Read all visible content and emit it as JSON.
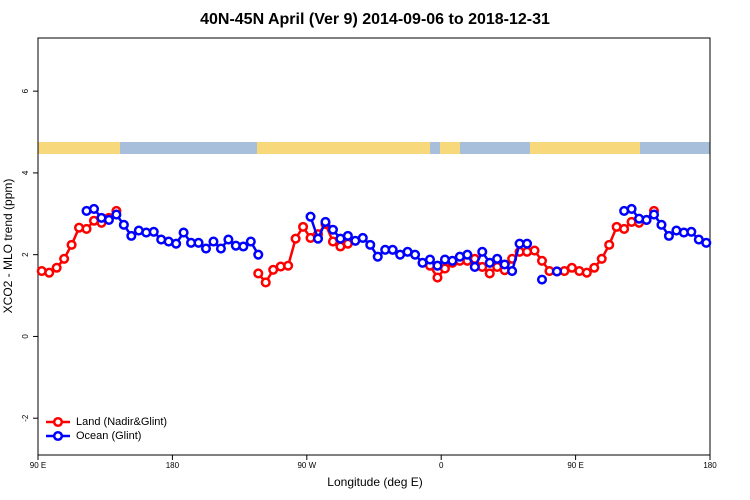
{
  "chart_data": {
    "type": "line",
    "title": "40N-45N April (Ver 9)   2014-09-06 to 2018-12-31",
    "xlabel": "Longitude (deg E)",
    "ylabel": "XCO2 - MLO trend (ppm)",
    "x": [
      92.5,
      97.5,
      102.5,
      107.5,
      112.5,
      117.5,
      122.5,
      127.5,
      132.5,
      137.5,
      142.5,
      147.5,
      152.5,
      157.5,
      162.5,
      167.5,
      172.5,
      177.5,
      182.5,
      187.5,
      192.5,
      197.5,
      202.5,
      207.5,
      212.5,
      217.5,
      222.5,
      227.5,
      232.5,
      237.5,
      242.5,
      247.5,
      252.5,
      257.5,
      262.5,
      267.5,
      272.5,
      277.5,
      282.5,
      287.5,
      292.5,
      297.5,
      302.5,
      307.5,
      312.5,
      317.5,
      322.5,
      327.5,
      332.5,
      337.5,
      342.5,
      347.5,
      352.5,
      357.5,
      362.5,
      367.5,
      372.5,
      377.5,
      382.5,
      387.5,
      392.5,
      397.5,
      402.5,
      407.5,
      412.5,
      417.5,
      422.5,
      427.5,
      432.5,
      437.5,
      442.5,
      447.5,
      452.5,
      457.5,
      462.5,
      467.5,
      472.5,
      477.5,
      482.5,
      487.5,
      492.5,
      497.5,
      502.5,
      507.5,
      512.5,
      517.5,
      522.5,
      527.5,
      532.5,
      537.5
    ],
    "series": [
      {
        "name": "Land (Nadir&Glint)",
        "color": "#ff0000",
        "values": [
          1.6,
          1.56,
          1.68,
          1.9,
          2.24,
          2.66,
          2.63,
          2.83,
          2.78,
          2.9,
          3.07,
          null,
          null,
          null,
          null,
          null,
          null,
          null,
          null,
          null,
          null,
          null,
          null,
          null,
          null,
          null,
          null,
          null,
          null,
          1.54,
          1.32,
          1.63,
          1.71,
          1.73,
          2.39,
          2.68,
          2.41,
          2.5,
          2.75,
          2.32,
          2.2,
          2.27,
          null,
          null,
          null,
          null,
          null,
          null,
          null,
          null,
          null,
          null,
          1.73,
          1.44,
          1.66,
          1.8,
          1.85,
          1.85,
          1.9,
          1.7,
          1.54,
          1.7,
          1.62,
          1.9,
          2.07,
          2.07,
          2.1,
          1.85,
          1.6,
          1.59,
          1.6,
          1.68,
          1.6,
          1.56,
          1.68,
          1.9,
          2.24,
          2.68,
          2.63,
          2.8,
          2.78,
          2.85,
          3.07,
          null,
          null,
          null,
          null,
          null,
          null,
          null
        ]
      },
      {
        "name": "Ocean (Glint)",
        "color": "#0000ff",
        "values": [
          null,
          null,
          null,
          null,
          null,
          null,
          3.07,
          3.12,
          2.9,
          2.85,
          2.98,
          2.73,
          2.46,
          2.59,
          2.54,
          2.56,
          2.37,
          2.32,
          2.27,
          2.54,
          2.29,
          2.29,
          2.15,
          2.32,
          2.15,
          2.37,
          2.22,
          2.2,
          2.32,
          2.0,
          null,
          null,
          null,
          null,
          null,
          null,
          2.93,
          2.39,
          2.8,
          2.61,
          2.39,
          2.46,
          2.34,
          2.41,
          2.24,
          1.95,
          2.12,
          2.12,
          2.0,
          2.07,
          2.0,
          1.8,
          1.88,
          1.73,
          1.88,
          1.85,
          1.95,
          2.0,
          1.7,
          2.07,
          1.8,
          1.9,
          1.76,
          1.6,
          2.27,
          2.27,
          null,
          1.39,
          null,
          1.59,
          null,
          null,
          null,
          null,
          null,
          null,
          null,
          null,
          3.07,
          3.12,
          2.88,
          2.85,
          2.98,
          2.73,
          2.46,
          2.59,
          2.54,
          2.56,
          2.37,
          2.29
        ]
      }
    ],
    "xlim": [
      90,
      540
    ],
    "xticks": [
      {
        "value": 90,
        "label": "90 E"
      },
      180,
      {
        "value": 270,
        "label": "90 W"
      },
      {
        "value": 360,
        "label": "0"
      },
      {
        "value": 450,
        "label": "90 E"
      },
      {
        "value": 540,
        "label": "180"
      }
    ],
    "ylim": [
      -2.9,
      7.3
    ],
    "yticks": [
      -2,
      0,
      2,
      4,
      6
    ],
    "legend": "lower left"
  }
}
